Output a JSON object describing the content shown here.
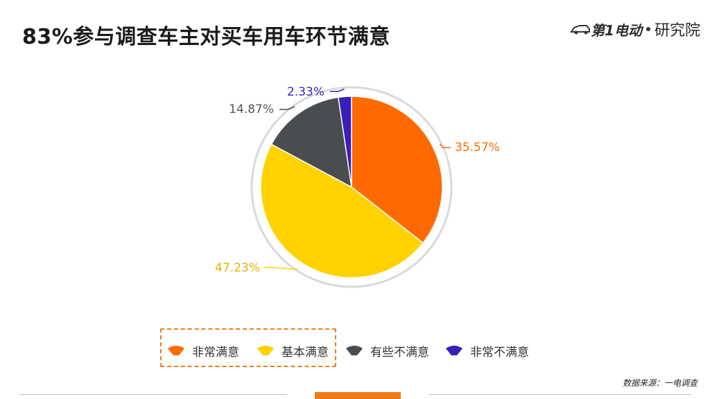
{
  "header": {
    "title": "83%参与调查车主对买车用车环节满意",
    "brand_logo": "第1电动",
    "brand_name": "研究院"
  },
  "chart_data": {
    "type": "pie",
    "title": "",
    "slices": [
      {
        "label": "非常满意",
        "value": 35.57,
        "display": "35.57%",
        "color": "#ff6a00"
      },
      {
        "label": "基本满意",
        "value": 47.23,
        "display": "47.23%",
        "color": "#ffd200"
      },
      {
        "label": "有些不满意",
        "value": 14.87,
        "display": "14.87%",
        "color": "#4a4d50"
      },
      {
        "label": "非常不满意",
        "value": 2.33,
        "display": "2.33%",
        "color": "#3a1fb8"
      }
    ],
    "start_angle": "12 o'clock",
    "direction": "clockwise",
    "legend_position": "bottom",
    "highlighted_legend_items": [
      "非常满意",
      "基本满意"
    ]
  },
  "footer": {
    "source": "数据来源：一电调查"
  },
  "colors": {
    "accent": "#f07c1a",
    "ring": "#d9d9d9"
  }
}
